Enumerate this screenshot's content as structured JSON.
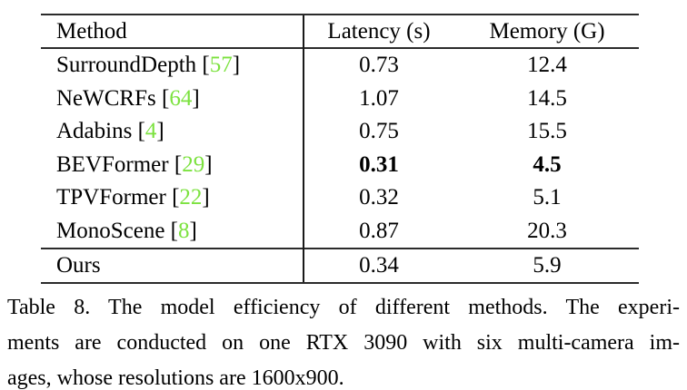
{
  "colors": {
    "citation_green": "#7CE23F",
    "rule": "#2b2b2b"
  },
  "table": {
    "header": {
      "method": "Method",
      "latency": "Latency (s)",
      "memory": "Memory (G)"
    },
    "rows": [
      {
        "method": "SurroundDepth",
        "cite": "57",
        "latency": "0.73",
        "memory": "12.4",
        "bold": false,
        "ours": false
      },
      {
        "method": "NeWCRFs",
        "cite": "64",
        "latency": "1.07",
        "memory": "14.5",
        "bold": false,
        "ours": false
      },
      {
        "method": "Adabins",
        "cite": "4",
        "latency": "0.75",
        "memory": "15.5",
        "bold": false,
        "ours": false
      },
      {
        "method": "BEVFormer",
        "cite": "29",
        "latency": "0.31",
        "memory": "4.5",
        "bold": true,
        "ours": false
      },
      {
        "method": "TPVFormer",
        "cite": "22",
        "latency": "0.32",
        "memory": "5.1",
        "bold": false,
        "ours": false
      },
      {
        "method": "MonoScene",
        "cite": "8",
        "latency": "0.87",
        "memory": "20.3",
        "bold": false,
        "ours": false
      },
      {
        "method": "Ours",
        "cite": null,
        "latency": "0.34",
        "memory": "5.9",
        "bold": false,
        "ours": true
      }
    ]
  },
  "caption": {
    "lines": [
      "Table 8. The model efficiency of different methods. The experi-",
      "ments are conducted on one RTX 3090 with six multi-camera im-",
      "ages, whose resolutions are 1600x900."
    ]
  }
}
